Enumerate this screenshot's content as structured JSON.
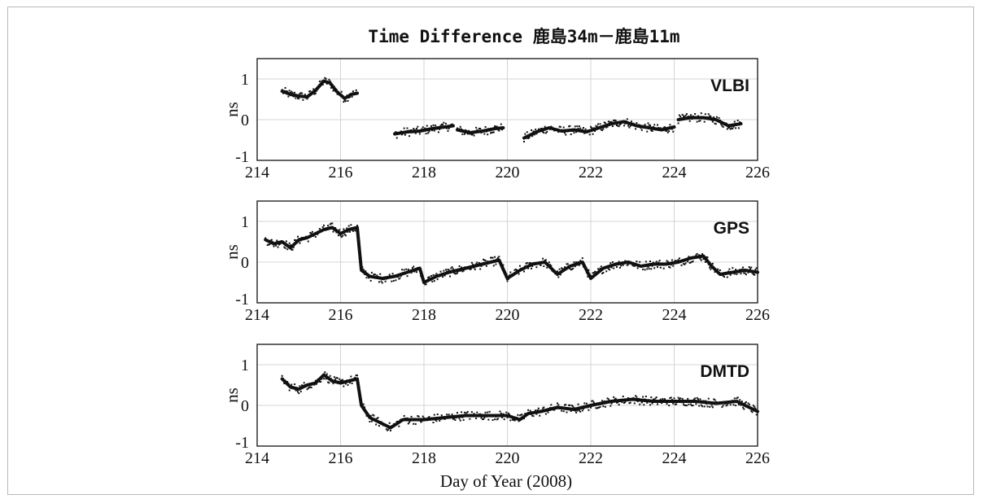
{
  "figure": {
    "title": "Time Difference     鹿島34m－鹿島11m",
    "xlabel": "Day of Year (2008)"
  },
  "chart_data": [
    {
      "type": "scatter",
      "panel_label": "VLBI",
      "ylabel": "ns",
      "xlim": [
        214,
        226
      ],
      "ylim": [
        -1,
        1.5
      ],
      "xticks": [
        214,
        216,
        218,
        220,
        222,
        224,
        226
      ],
      "yticks": [
        -1,
        0,
        1
      ],
      "grid": true,
      "segments": [
        {
          "x": [
            214.6,
            214.8,
            215.0,
            215.2,
            215.4,
            215.6,
            215.75,
            215.9,
            216.1,
            216.25,
            216.4
          ],
          "y": [
            0.7,
            0.62,
            0.58,
            0.56,
            0.72,
            0.95,
            0.9,
            0.7,
            0.52,
            0.62,
            0.65
          ]
        },
        {
          "x": [
            217.3,
            217.6,
            217.9,
            218.2,
            218.5,
            218.7
          ],
          "y": [
            -0.35,
            -0.3,
            -0.28,
            -0.22,
            -0.18,
            -0.15
          ]
        },
        {
          "x": [
            218.8,
            219.1,
            219.4,
            219.7,
            219.9
          ],
          "y": [
            -0.25,
            -0.32,
            -0.28,
            -0.22,
            -0.2
          ]
        },
        {
          "x": [
            220.4,
            220.7,
            221.0,
            221.3,
            221.6,
            221.9,
            222.2,
            222.5,
            222.8,
            223.1,
            223.4,
            223.7,
            224.0
          ],
          "y": [
            -0.45,
            -0.3,
            -0.2,
            -0.28,
            -0.25,
            -0.3,
            -0.2,
            -0.1,
            -0.05,
            -0.15,
            -0.2,
            -0.25,
            -0.18
          ]
        },
        {
          "x": [
            224.1,
            224.4,
            224.7,
            225.0,
            225.3,
            225.6
          ],
          "y": [
            0.0,
            0.05,
            0.05,
            0.0,
            -0.15,
            -0.1
          ]
        }
      ]
    },
    {
      "type": "scatter",
      "panel_label": "GPS",
      "ylabel": "ns",
      "xlim": [
        214,
        226
      ],
      "ylim": [
        -1,
        1.5
      ],
      "xticks": [
        214,
        216,
        218,
        220,
        222,
        224,
        226
      ],
      "yticks": [
        -1,
        0,
        1
      ],
      "grid": true,
      "segments": [
        {
          "x": [
            214.2,
            214.4,
            214.6,
            214.8,
            215.0,
            215.2,
            215.4,
            215.6,
            215.8,
            216.0,
            216.2,
            216.4,
            216.5,
            216.7,
            217.0,
            217.3,
            217.6,
            217.9,
            218.0,
            218.3,
            218.6,
            219.0,
            219.4,
            219.8,
            220.0,
            220.3,
            220.6,
            220.9,
            221.2,
            221.5,
            221.8,
            222.0,
            222.3,
            222.6,
            222.9,
            223.2,
            223.5,
            223.8,
            224.1,
            224.4,
            224.7,
            224.9,
            225.1,
            225.4,
            225.7,
            226.0
          ],
          "y": [
            0.55,
            0.45,
            0.5,
            0.35,
            0.55,
            0.6,
            0.7,
            0.8,
            0.85,
            0.7,
            0.8,
            0.85,
            -0.2,
            -0.35,
            -0.4,
            -0.35,
            -0.25,
            -0.15,
            -0.5,
            -0.35,
            -0.25,
            -0.15,
            -0.05,
            0.05,
            -0.4,
            -0.2,
            -0.05,
            0.0,
            -0.3,
            -0.1,
            0.0,
            -0.4,
            -0.15,
            -0.05,
            0.0,
            -0.1,
            -0.05,
            -0.05,
            0.0,
            0.1,
            0.15,
            -0.1,
            -0.3,
            -0.25,
            -0.2,
            -0.25
          ]
        }
      ]
    },
    {
      "type": "scatter",
      "panel_label": "DMTD",
      "ylabel": "ns",
      "xlim": [
        214,
        226
      ],
      "ylim": [
        -1,
        1.5
      ],
      "xticks": [
        214,
        216,
        218,
        220,
        222,
        224,
        226
      ],
      "yticks": [
        -1,
        0,
        1
      ],
      "grid": true,
      "segments": [
        {
          "x": [
            214.6,
            214.8,
            215.0,
            215.2,
            215.4,
            215.6,
            215.8,
            216.0,
            216.2,
            216.4,
            216.5,
            216.7,
            217.0,
            217.2,
            217.5,
            218.0,
            218.5,
            219.0,
            219.5,
            220.0,
            220.3,
            220.5,
            220.8,
            221.2,
            221.6,
            222.0,
            222.5,
            223.0,
            223.5,
            224.0,
            224.5,
            225.0,
            225.5,
            226.0
          ],
          "y": [
            0.65,
            0.45,
            0.4,
            0.5,
            0.55,
            0.75,
            0.6,
            0.55,
            0.6,
            0.65,
            0.0,
            -0.3,
            -0.45,
            -0.55,
            -0.35,
            -0.35,
            -0.3,
            -0.25,
            -0.25,
            -0.25,
            -0.35,
            -0.2,
            -0.15,
            -0.05,
            -0.1,
            0.0,
            0.1,
            0.15,
            0.1,
            0.1,
            0.1,
            0.05,
            0.1,
            -0.15
          ]
        }
      ]
    }
  ]
}
